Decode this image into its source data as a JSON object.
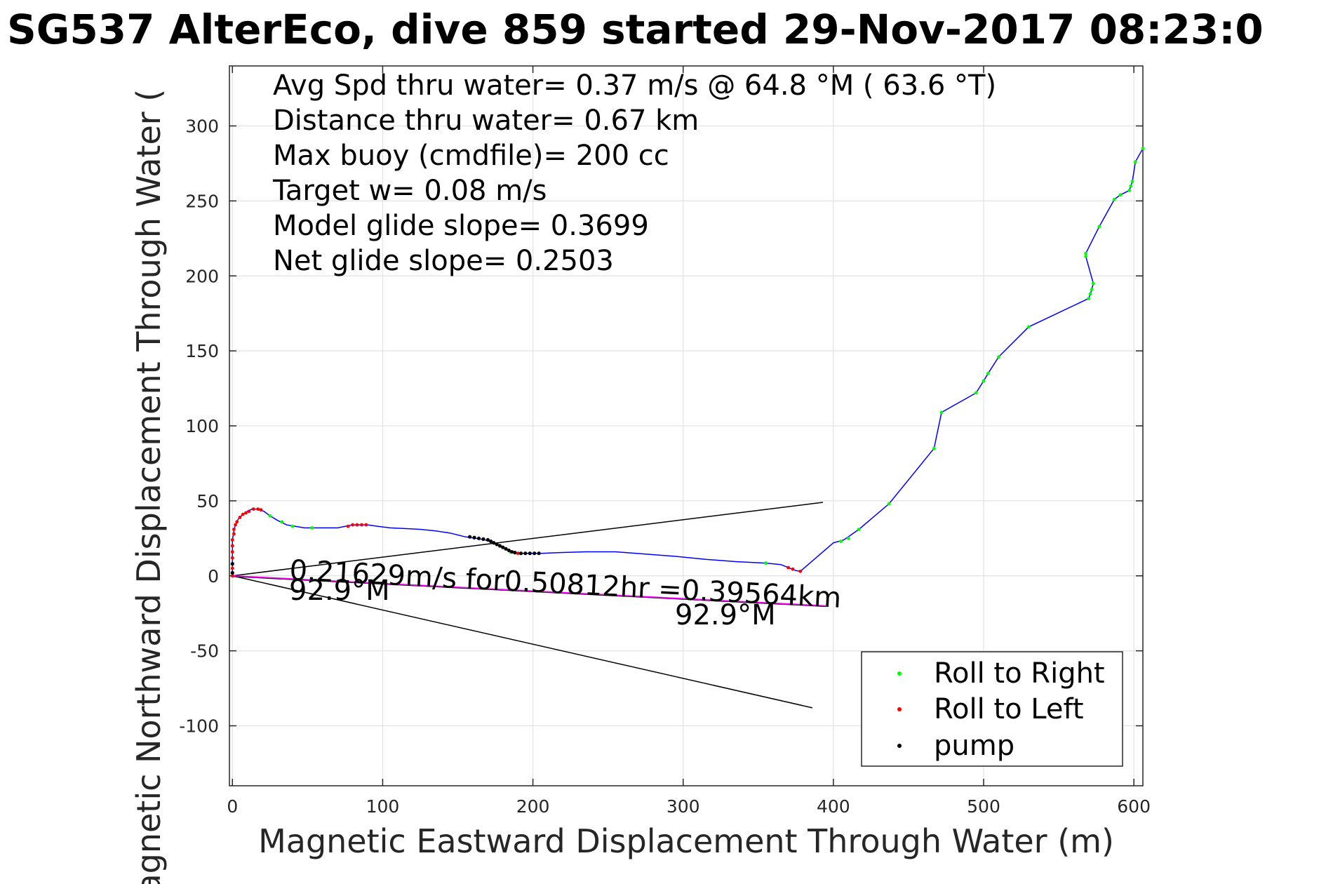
{
  "chart_data": {
    "type": "scatter",
    "title": "SG537 AlterEco, dive 859 started 29-Nov-2017 08:23:0",
    "xlabel": "Magnetic Eastward Displacement Through Water (m)",
    "ylabel": "Magnetic Northward Displacement Through Water (",
    "xlim": [
      -2,
      606
    ],
    "ylim": [
      -140,
      340
    ],
    "xticks": [
      0,
      100,
      200,
      300,
      400,
      500,
      600
    ],
    "yticks": [
      -100,
      -50,
      0,
      50,
      100,
      150,
      200,
      250,
      300
    ],
    "grid": true,
    "legend_position": "bottom-right",
    "stats": [
      "Avg Spd thru water=  0.37 m/s @  64.8 °M ( 63.6 °T)",
      "Distance thru water=  0.67 km",
      "Max buoy (cmdfile)= 200 cc",
      "Target w= 0.08 m/s",
      "Model glide slope= 0.3699",
      "Net glide slope= 0.2503"
    ],
    "annotations": {
      "current_text": "0.21629m/s for0.50812hr =0.39564km",
      "heading_start": "92.9°M",
      "heading_end": "92.9°M"
    },
    "legend": [
      {
        "label": "Roll to Right",
        "color": "#00ff00"
      },
      {
        "label": "Roll to Left",
        "color": "#ff0000"
      },
      {
        "label": "pump",
        "color": "#000000"
      }
    ],
    "track_color": "#0000ff",
    "current_color": "#ff00ff",
    "track": [
      [
        0,
        0
      ],
      [
        0,
        4
      ],
      [
        0,
        10
      ],
      [
        0,
        18
      ],
      [
        0,
        24
      ],
      [
        1,
        30
      ],
      [
        2,
        34
      ],
      [
        4,
        38
      ],
      [
        7,
        41
      ],
      [
        10,
        43
      ],
      [
        13,
        44.5
      ],
      [
        17,
        44.5
      ],
      [
        21,
        43
      ],
      [
        25,
        40
      ],
      [
        30,
        37
      ],
      [
        36,
        34
      ],
      [
        42,
        33
      ],
      [
        48,
        32
      ],
      [
        55,
        32
      ],
      [
        63,
        32
      ],
      [
        70,
        32
      ],
      [
        75,
        33
      ],
      [
        80,
        34
      ],
      [
        85,
        34
      ],
      [
        90,
        34
      ],
      [
        97,
        33
      ],
      [
        105,
        32
      ],
      [
        115,
        31.5
      ],
      [
        125,
        31
      ],
      [
        135,
        30
      ],
      [
        145,
        28.5
      ],
      [
        155,
        26
      ],
      [
        162,
        25
      ],
      [
        168,
        24
      ],
      [
        174,
        22
      ],
      [
        180,
        19
      ],
      [
        186,
        16
      ],
      [
        190,
        15
      ],
      [
        196,
        15
      ],
      [
        205,
        15
      ],
      [
        218,
        15.5
      ],
      [
        235,
        16
      ],
      [
        255,
        16
      ],
      [
        275,
        14.5
      ],
      [
        295,
        13
      ],
      [
        315,
        11
      ],
      [
        335,
        9.5
      ],
      [
        355,
        8.5
      ],
      [
        365,
        7.5
      ],
      [
        370,
        5.5
      ],
      [
        375,
        3.5
      ],
      [
        378,
        3
      ],
      [
        400,
        22
      ],
      [
        407,
        24
      ],
      [
        417,
        31
      ],
      [
        437,
        48
      ],
      [
        467,
        85
      ],
      [
        472,
        109
      ],
      [
        495,
        122
      ],
      [
        500,
        130
      ],
      [
        503,
        135
      ],
      [
        510,
        146
      ],
      [
        530,
        166
      ],
      [
        570,
        185
      ],
      [
        571,
        188
      ],
      [
        572,
        191
      ],
      [
        573,
        195
      ],
      [
        568,
        213
      ],
      [
        568,
        215
      ],
      [
        577,
        233
      ],
      [
        587,
        251
      ],
      [
        591,
        254
      ],
      [
        597,
        257
      ],
      [
        598,
        260
      ],
      [
        599,
        263
      ],
      [
        601,
        276
      ],
      [
        606,
        285
      ]
    ],
    "roll_right_points": [
      [
        25,
        40
      ],
      [
        33,
        36
      ],
      [
        40,
        33
      ],
      [
        53,
        32
      ],
      [
        185,
        16
      ],
      [
        355,
        8.5
      ],
      [
        405,
        23
      ],
      [
        410,
        25
      ],
      [
        417,
        31
      ],
      [
        437,
        48
      ],
      [
        467,
        85
      ],
      [
        472,
        109
      ],
      [
        495,
        122
      ],
      [
        500,
        130
      ],
      [
        503,
        135
      ],
      [
        510,
        146
      ],
      [
        530,
        166
      ],
      [
        570,
        185
      ],
      [
        571,
        188
      ],
      [
        572,
        191
      ],
      [
        573,
        195
      ],
      [
        568,
        213
      ],
      [
        568,
        215
      ],
      [
        577,
        233
      ],
      [
        587,
        251
      ],
      [
        591,
        254
      ],
      [
        597,
        257
      ],
      [
        598,
        260
      ],
      [
        599,
        263
      ],
      [
        601,
        276
      ],
      [
        606,
        285
      ]
    ],
    "roll_left_points": [
      [
        0,
        0
      ],
      [
        0,
        5
      ],
      [
        0,
        12
      ],
      [
        0,
        16
      ],
      [
        0,
        20
      ],
      [
        0,
        24
      ],
      [
        1,
        28
      ],
      [
        1,
        31
      ],
      [
        2,
        34
      ],
      [
        3,
        36
      ],
      [
        5,
        39
      ],
      [
        7,
        41
      ],
      [
        9,
        42
      ],
      [
        11,
        43
      ],
      [
        14,
        44.5
      ],
      [
        17,
        44.5
      ],
      [
        19,
        44
      ],
      [
        77,
        33
      ],
      [
        80,
        34
      ],
      [
        83,
        34
      ],
      [
        86,
        34
      ],
      [
        89,
        34
      ],
      [
        190,
        15
      ],
      [
        370,
        5.5
      ],
      [
        373,
        4.5
      ],
      [
        378,
        3
      ]
    ],
    "pump_points": [
      [
        0,
        2
      ],
      [
        0,
        8
      ],
      [
        158,
        26
      ],
      [
        161,
        25.5
      ],
      [
        164,
        25
      ],
      [
        167,
        24.5
      ],
      [
        170,
        24
      ],
      [
        172,
        23
      ],
      [
        174,
        22
      ],
      [
        176,
        21
      ],
      [
        178,
        20
      ],
      [
        180,
        19
      ],
      [
        182,
        18
      ],
      [
        184,
        17
      ],
      [
        186,
        16
      ],
      [
        188,
        15.5
      ],
      [
        192,
        15
      ],
      [
        195,
        15
      ],
      [
        198,
        15
      ],
      [
        201,
        15
      ],
      [
        204,
        15
      ]
    ],
    "current_line": [
      [
        0,
        0
      ],
      [
        395,
        -20
      ]
    ],
    "bound_lines": [
      [
        [
          0,
          0
        ],
        [
          393,
          49
        ]
      ],
      [
        [
          0,
          0
        ],
        [
          386,
          -88
        ]
      ]
    ]
  }
}
